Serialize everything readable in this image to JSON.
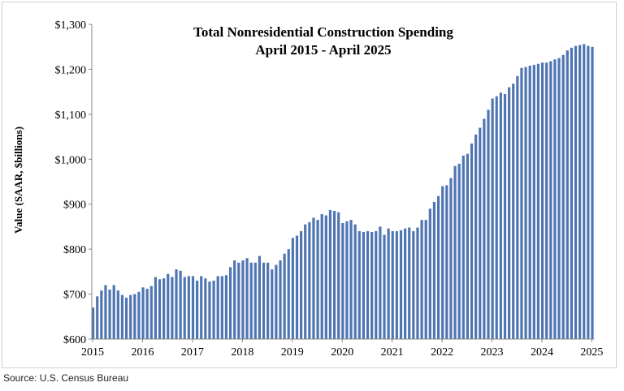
{
  "chart_data": {
    "type": "bar",
    "title": "Total Nonresidential Construction Spending",
    "subtitle": "April 2015 - April 2025",
    "ylabel": "Value (SAAR, $billions)",
    "xlabel": "",
    "ylim": [
      600,
      1300
    ],
    "yticks": [
      "$600",
      "$700",
      "$800",
      "$900",
      "$1,000",
      "$1,100",
      "$1,200",
      "$1,300"
    ],
    "xticks": [
      "2015",
      "2016",
      "2017",
      "2018",
      "2019",
      "2020",
      "2021",
      "2022",
      "2023",
      "2024",
      "2025"
    ],
    "grid": false,
    "bar_color": "#4f75b3",
    "start": "April 2015",
    "values": [
      670,
      695,
      708,
      720,
      710,
      720,
      708,
      698,
      692,
      698,
      700,
      705,
      715,
      712,
      718,
      738,
      733,
      735,
      745,
      738,
      755,
      752,
      738,
      740,
      740,
      730,
      740,
      735,
      728,
      730,
      740,
      740,
      742,
      760,
      775,
      770,
      775,
      780,
      770,
      770,
      785,
      770,
      770,
      755,
      765,
      775,
      790,
      800,
      825,
      830,
      840,
      855,
      860,
      870,
      865,
      878,
      875,
      887,
      885,
      882,
      858,
      862,
      865,
      855,
      840,
      838,
      840,
      838,
      840,
      850,
      832,
      846,
      840,
      840,
      842,
      846,
      848,
      840,
      848,
      865,
      865,
      890,
      905,
      918,
      940,
      942,
      958,
      985,
      990,
      1008,
      1012,
      1035,
      1055,
      1070,
      1090,
      1110,
      1135,
      1140,
      1148,
      1145,
      1160,
      1168,
      1185,
      1203,
      1205,
      1208,
      1210,
      1212,
      1215,
      1215,
      1218,
      1222,
      1225,
      1232,
      1242,
      1248,
      1252,
      1254,
      1256,
      1252,
      1250
    ]
  },
  "source": "Source: U.S. Census Bureau"
}
